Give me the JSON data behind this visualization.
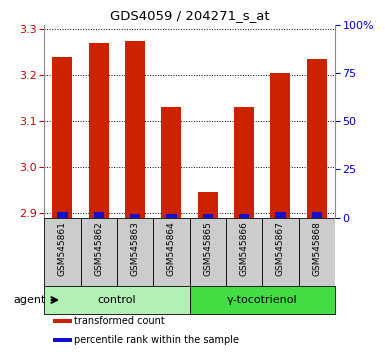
{
  "title": "GDS4059 / 204271_s_at",
  "samples": [
    "GSM545861",
    "GSM545862",
    "GSM545863",
    "GSM545864",
    "GSM545865",
    "GSM545866",
    "GSM545867",
    "GSM545868"
  ],
  "transformed_count": [
    3.24,
    3.27,
    3.275,
    3.13,
    2.945,
    3.13,
    3.205,
    3.235
  ],
  "percentile_rank": [
    3,
    3,
    2,
    2,
    2,
    2,
    3,
    3
  ],
  "ylim_left": [
    2.89,
    3.31
  ],
  "ylim_right": [
    0,
    100
  ],
  "yticks_left": [
    2.9,
    3.0,
    3.1,
    3.2,
    3.3
  ],
  "yticks_right": [
    0,
    25,
    50,
    75,
    100
  ],
  "bar_bottom": 2.89,
  "groups": [
    {
      "label": "control",
      "indices": [
        0,
        1,
        2,
        3
      ],
      "color": "#b3f0b3"
    },
    {
      "label": "γ-tocotrienol",
      "indices": [
        4,
        5,
        6,
        7
      ],
      "color": "#44dd44"
    }
  ],
  "bar_color_red": "#cc2200",
  "bar_color_blue": "#1111cc",
  "bar_width": 0.55,
  "blue_bar_width": 0.28,
  "agent_label": "agent",
  "legend_items": [
    {
      "color": "#cc2200",
      "label": "transformed count"
    },
    {
      "color": "#1111cc",
      "label": "percentile rank within the sample"
    }
  ],
  "background_color": "#ffffff",
  "xlabel_area_color": "#cccccc",
  "title_color": "#000000",
  "left_tick_color": "#cc0000",
  "right_tick_color": "#0000cc"
}
